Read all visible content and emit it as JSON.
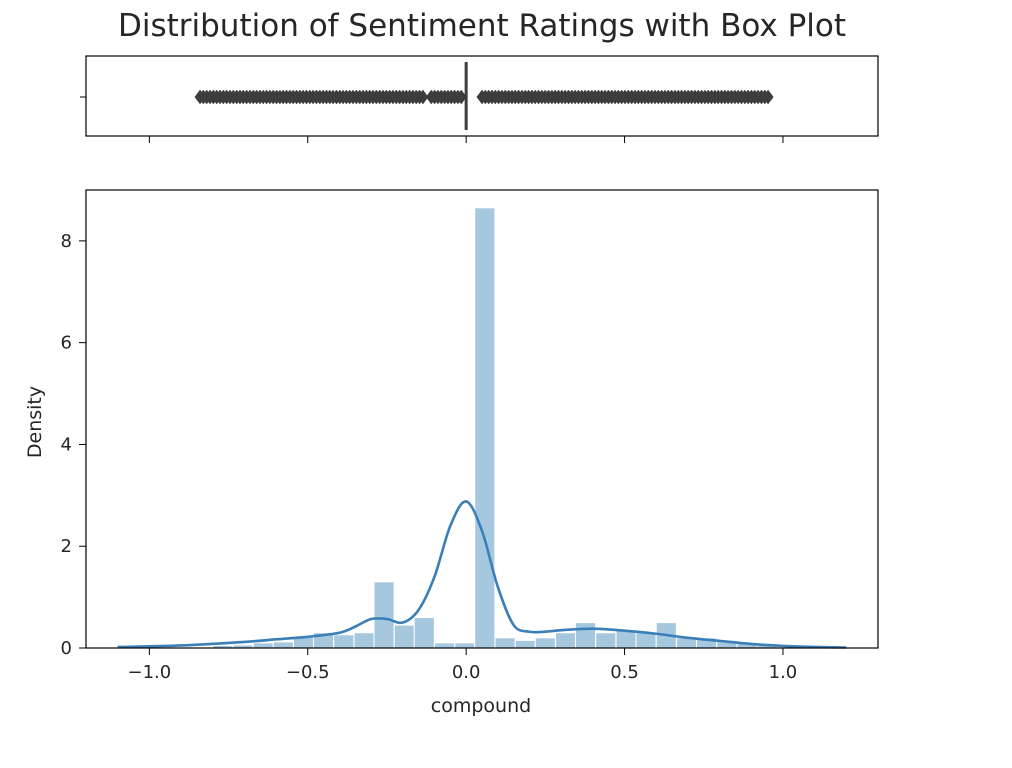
{
  "chart_data": [
    {
      "type": "box",
      "title": "Distribution of Sentiment Ratings with Box Plot",
      "median": 0.0,
      "q1": 0.0,
      "q3": 0.0,
      "outliers_range": [
        -0.85,
        0.96
      ],
      "outlier_segments": [
        [
          -0.84,
          -0.43
        ],
        [
          -0.42,
          -0.13
        ],
        [
          -0.11,
          -0.01
        ],
        [
          0.05,
          0.96
        ]
      ],
      "xlim": [
        -1.2,
        1.3
      ]
    },
    {
      "type": "histogram_kde",
      "xlabel": "compound",
      "ylabel": "Density",
      "xlim": [
        -1.2,
        1.3
      ],
      "ylim": [
        0,
        9
      ],
      "xticks": [
        -1.0,
        -0.5,
        0.0,
        0.5,
        1.0
      ],
      "xtick_labels": [
        "−1.0",
        "−0.5",
        "0.0",
        "0.5",
        "1.0"
      ],
      "yticks": [
        0,
        2,
        4,
        6,
        8
      ],
      "ytick_labels": [
        "0",
        "2",
        "4",
        "6",
        "8"
      ],
      "bin_width": 0.0636,
      "bins": [
        {
          "x": -0.8,
          "h": 0.05
        },
        {
          "x": -0.736,
          "h": 0.06
        },
        {
          "x": -0.672,
          "h": 0.1
        },
        {
          "x": -0.609,
          "h": 0.12
        },
        {
          "x": -0.545,
          "h": 0.22
        },
        {
          "x": -0.482,
          "h": 0.3
        },
        {
          "x": -0.418,
          "h": 0.26
        },
        {
          "x": -0.354,
          "h": 0.3
        },
        {
          "x": -0.291,
          "h": 1.3
        },
        {
          "x": -0.227,
          "h": 0.45
        },
        {
          "x": -0.164,
          "h": 0.6
        },
        {
          "x": -0.1,
          "h": 0.1
        },
        {
          "x": -0.036,
          "h": 0.1
        },
        {
          "x": 0.027,
          "h": 8.65
        },
        {
          "x": 0.091,
          "h": 0.2
        },
        {
          "x": 0.155,
          "h": 0.15
        },
        {
          "x": 0.218,
          "h": 0.2
        },
        {
          "x": 0.282,
          "h": 0.3
        },
        {
          "x": 0.345,
          "h": 0.5
        },
        {
          "x": 0.409,
          "h": 0.3
        },
        {
          "x": 0.473,
          "h": 0.35
        },
        {
          "x": 0.536,
          "h": 0.3
        },
        {
          "x": 0.6,
          "h": 0.5
        },
        {
          "x": 0.664,
          "h": 0.2
        },
        {
          "x": 0.727,
          "h": 0.2
        },
        {
          "x": 0.791,
          "h": 0.15
        },
        {
          "x": 0.855,
          "h": 0.1
        },
        {
          "x": 0.918,
          "h": 0.05
        }
      ],
      "kde": {
        "x": [
          -1.1,
          -0.9,
          -0.7,
          -0.6,
          -0.5,
          -0.4,
          -0.35,
          -0.3,
          -0.25,
          -0.2,
          -0.15,
          -0.1,
          -0.05,
          0.0,
          0.05,
          0.1,
          0.15,
          0.2,
          0.25,
          0.3,
          0.4,
          0.5,
          0.6,
          0.7,
          0.8,
          0.9,
          1.0,
          1.1,
          1.2
        ],
        "y": [
          0.02,
          0.05,
          0.12,
          0.17,
          0.22,
          0.3,
          0.42,
          0.57,
          0.57,
          0.5,
          0.75,
          1.4,
          2.4,
          2.88,
          2.3,
          1.2,
          0.45,
          0.32,
          0.32,
          0.35,
          0.38,
          0.34,
          0.28,
          0.2,
          0.14,
          0.08,
          0.04,
          0.02,
          0.01
        ]
      },
      "colors": {
        "bars": "#a6c8df",
        "kde": "#3a7fb8"
      }
    }
  ]
}
